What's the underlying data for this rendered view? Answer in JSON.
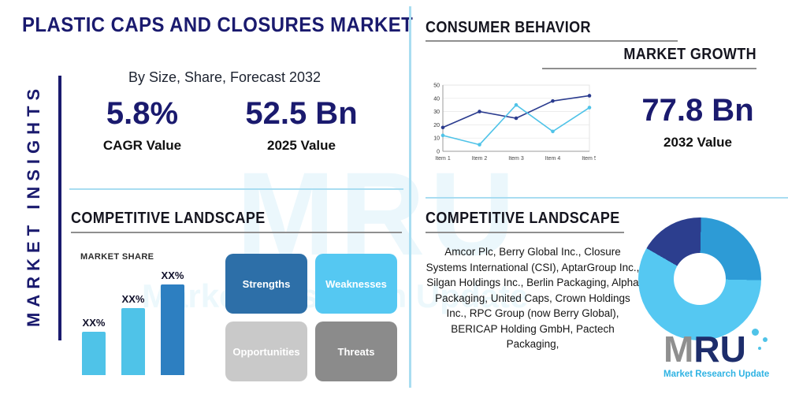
{
  "title": "PLASTIC CAPS AND CLOSURES MARKET",
  "left_rail": {
    "label": "MARKET INSIGHTS"
  },
  "overview": {
    "subtitle": "By Size, Share, Forecast 2032",
    "cagr_value": "5.8%",
    "cagr_label": "CAGR Value",
    "value_2025": "52.5 Bn",
    "value_2025_label": "2025 Value",
    "value_2032": "77.8 Bn",
    "value_2032_label": "2032 Value"
  },
  "sections": {
    "consumer_behavior": "CONSUMER BEHAVIOR",
    "market_growth": "MARKET GROWTH",
    "competitive_landscape_left": "COMPETITIVE LANDSCAPE",
    "competitive_landscape_right": "COMPETITIVE LANDSCAPE",
    "market_share_label": "MARKET SHARE"
  },
  "swot": {
    "strengths": "Strengths",
    "weaknesses": "Weaknesses",
    "opportunities": "Opportunities",
    "threats": "Threats"
  },
  "swot_colors": {
    "strengths": "#2d6fa8",
    "weaknesses": "#55c8f2",
    "opportunities": "#c9c9c9",
    "threats": "#8b8b8b"
  },
  "companies": "Amcor Plc, Berry Global Inc., Closure Systems International (CSI), AptarGroup Inc., Silgan Holdings Inc., Berlin Packaging, Alpha Packaging, United Caps, Crown Holdings Inc., RPC Group (now Berry Global), BERICAP Holding GmbH, Pactech Packaging,",
  "logo": {
    "m": "M",
    "r": "R",
    "u": "U",
    "tagline": "Market Research Update"
  },
  "watermark": {
    "text": "MRU",
    "tagline": "Market Research Update"
  },
  "colors": {
    "navy": "#1a1a6e",
    "light_blue": "#4fc3e8",
    "mid_blue": "#2d7fc1",
    "divider": "#a9ddf1"
  },
  "chart_data": [
    {
      "type": "line",
      "title": "MARKET GROWTH",
      "x": [
        "Item 1",
        "Item 2",
        "Item 3",
        "Item 4",
        "Item 5"
      ],
      "series": [
        {
          "name": "dark-blue-series",
          "color": "#2b3c8f",
          "values": [
            18,
            30,
            25,
            38,
            42
          ]
        },
        {
          "name": "light-blue-series",
          "color": "#4fc3e8",
          "values": [
            12,
            5,
            35,
            15,
            33
          ]
        }
      ],
      "ylim": [
        0,
        50
      ],
      "yticks": [
        0,
        10,
        20,
        30,
        40,
        50
      ],
      "grid": true,
      "legend": "none"
    },
    {
      "type": "bar",
      "title": "MARKET SHARE",
      "labels": [
        "XX%",
        "XX%",
        "XX%"
      ],
      "values": [
        30,
        46,
        62
      ],
      "colors": [
        "#4fc3e8",
        "#4fc3e8",
        "#2d7fc1"
      ],
      "ylim": [
        0,
        100
      ]
    },
    {
      "type": "pie",
      "donut": true,
      "segments": [
        {
          "name": "segment-navy",
          "color": "#2c3e8e",
          "value": 17
        },
        {
          "name": "segment-mid-blue",
          "color": "#2d9bd6",
          "value": 25
        },
        {
          "name": "segment-light-blue",
          "color": "#55c8f2",
          "value": 58
        }
      ]
    }
  ]
}
